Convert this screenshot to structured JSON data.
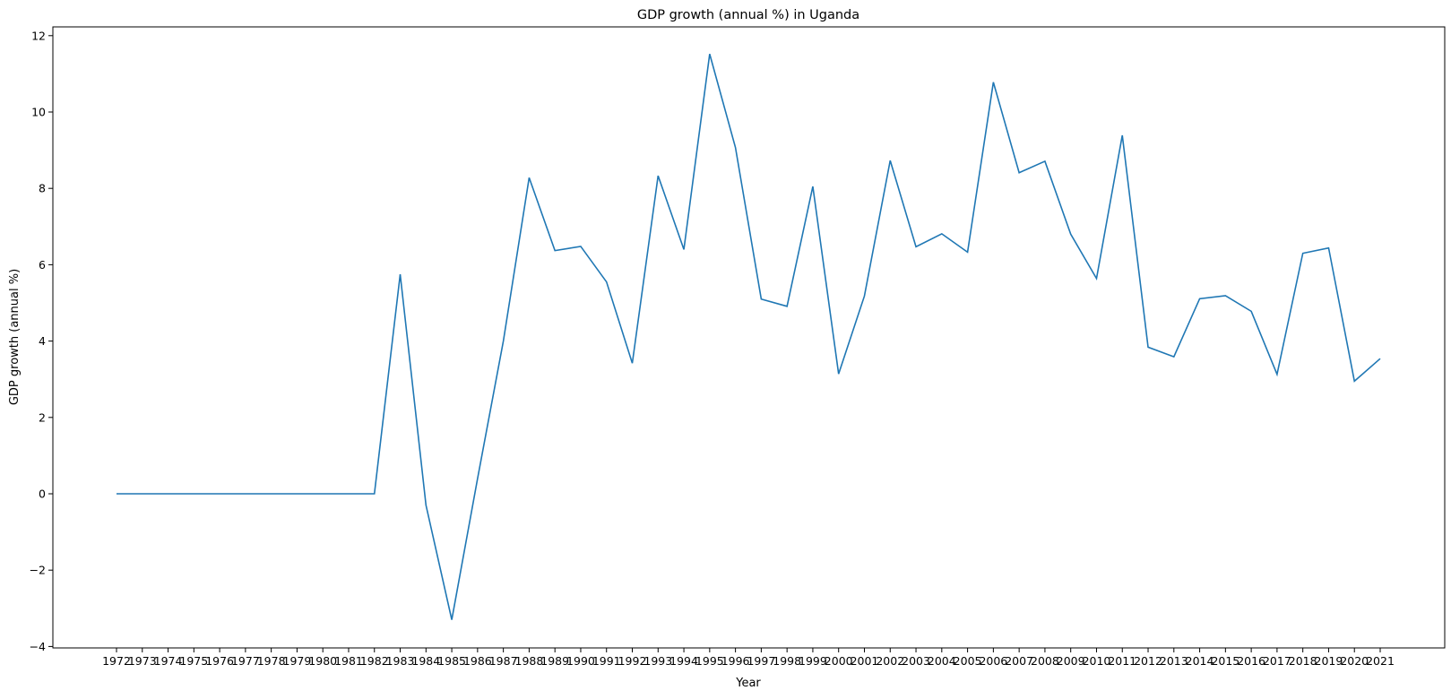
{
  "chart_data": {
    "type": "line",
    "title": "GDP growth (annual %) in Uganda",
    "xlabel": "Year",
    "ylabel": "GDP growth (annual %)",
    "ylim": [
      -4,
      12
    ],
    "yticks": [
      -4,
      -2,
      0,
      2,
      4,
      6,
      8,
      10,
      12
    ],
    "grid": false,
    "legend": "none",
    "line_color": "#1f77b4",
    "x": [
      "1972",
      "1973",
      "1974",
      "1975",
      "1976",
      "1977",
      "1978",
      "1979",
      "1980",
      "1981",
      "1982",
      "1983",
      "1984",
      "1985",
      "1986",
      "1987",
      "1988",
      "1989",
      "1990",
      "1991",
      "1992",
      "1993",
      "1994",
      "1995",
      "1996",
      "1997",
      "1998",
      "1999",
      "2000",
      "2001",
      "2002",
      "2003",
      "2004",
      "2005",
      "2006",
      "2007",
      "2008",
      "2009",
      "2010",
      "2011",
      "2012",
      "2013",
      "2014",
      "2015",
      "2016",
      "2017",
      "2018",
      "2019",
      "2020",
      "2021"
    ],
    "series": [
      {
        "values": [
          0,
          0,
          0,
          0,
          0,
          0,
          0,
          0,
          0,
          0,
          0,
          5.75,
          -0.3,
          -3.3,
          0.4,
          4.0,
          8.28,
          6.37,
          6.48,
          5.55,
          3.42,
          8.33,
          6.4,
          11.52,
          9.07,
          5.1,
          4.91,
          8.05,
          3.14,
          5.18,
          8.73,
          6.47,
          6.81,
          6.33,
          10.78,
          8.41,
          8.71,
          6.8,
          5.64,
          9.39,
          3.84,
          3.59,
          5.11,
          5.19,
          4.78,
          3.13,
          6.3,
          6.44,
          2.95,
          3.54
        ]
      }
    ]
  }
}
